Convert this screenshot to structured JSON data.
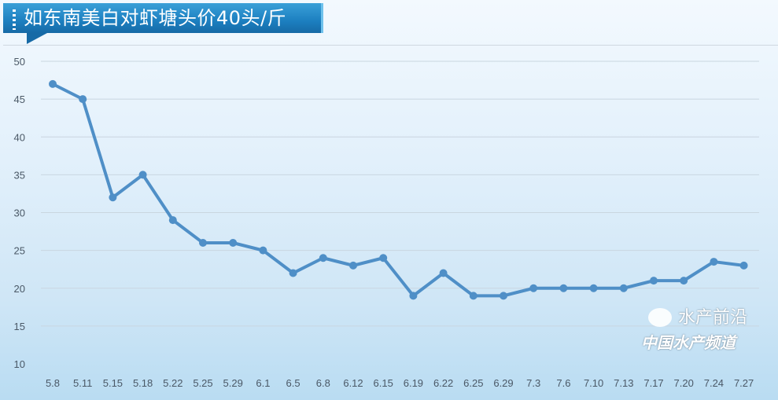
{
  "chart_data": {
    "type": "line",
    "title": "如东南美白对虾塘头价40头/斤",
    "xlabel": "",
    "ylabel": "",
    "ylim": [
      10,
      50
    ],
    "yticks": [
      10,
      15,
      20,
      25,
      30,
      35,
      40,
      45,
      50
    ],
    "grid": true,
    "legend": "none",
    "categories": [
      "5.8",
      "5.11",
      "5.15",
      "5.18",
      "5.22",
      "5.25",
      "5.29",
      "6.1",
      "6.5",
      "6.8",
      "6.12",
      "6.15",
      "6.19",
      "6.22",
      "6.25",
      "6.29",
      "7.3",
      "7.6",
      "7.10",
      "7.13",
      "7.17",
      "7.20",
      "7.24",
      "7.27"
    ],
    "series": [
      {
        "values": [
          47,
          45,
          32,
          35,
          29,
          26,
          26,
          25,
          22,
          24,
          23,
          24,
          19,
          22,
          19,
          19,
          20,
          20,
          20,
          20,
          21,
          21,
          23.5,
          23
        ],
        "color": "#4f8fc7"
      }
    ]
  },
  "watermark": {
    "line1": "水产前沿",
    "line2": "中国水产频道"
  },
  "colors": {
    "banner": "#1c7fc0",
    "line": "#4f8fc7",
    "grid": "#c9d6e0"
  }
}
